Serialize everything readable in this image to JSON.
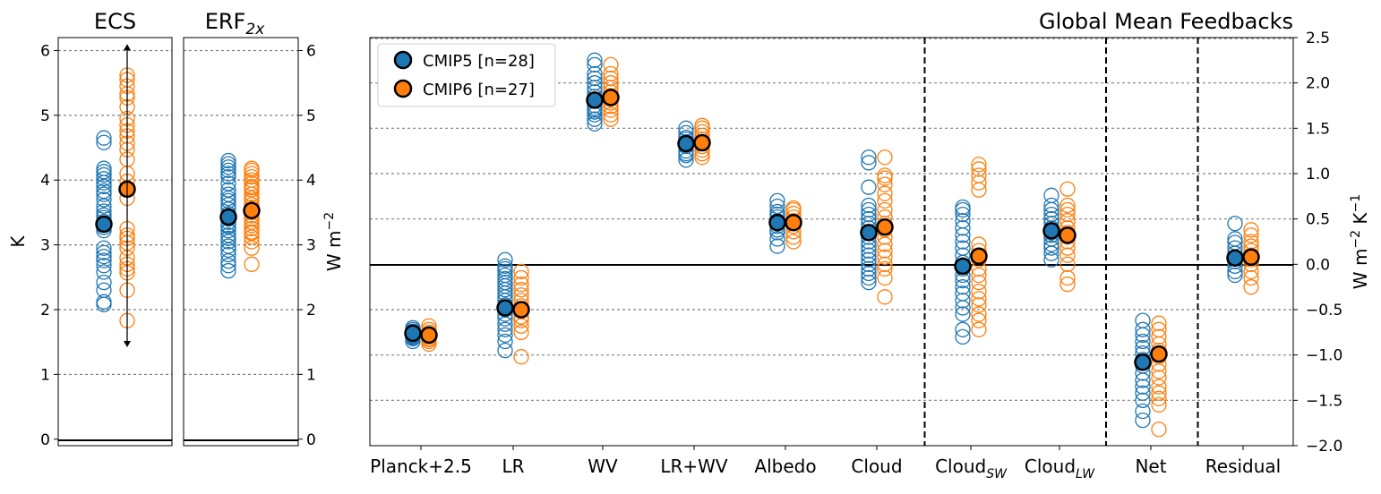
{
  "colors": {
    "cmip5": "#1f77b4",
    "cmip6": "#ff7f0e",
    "grid": "#808080"
  },
  "chart_data": [
    {
      "id": "ecs",
      "type": "scatter",
      "title": "ECS",
      "ylabel": "K",
      "ylim": [
        -0.1,
        6.2
      ],
      "yticks": [
        "0",
        "1",
        "2",
        "3",
        "4",
        "5",
        "6"
      ],
      "grid": "horizontal dashed",
      "series": [
        {
          "name": "CMIP5 [n=28]",
          "mean": 3.32,
          "values": [
            2.08,
            2.12,
            2.3,
            2.42,
            2.58,
            2.68,
            2.76,
            2.82,
            2.88,
            2.95,
            3.22,
            3.27,
            3.36,
            3.46,
            3.52,
            3.6,
            3.7,
            3.78,
            3.83,
            3.9,
            3.96,
            4.02,
            4.08,
            4.13,
            4.18,
            4.58,
            4.65,
            3.42
          ]
        },
        {
          "name": "CMIP6 [n=27]",
          "mean": 3.86,
          "values": [
            1.83,
            2.3,
            2.57,
            2.63,
            2.7,
            2.8,
            2.95,
            3.03,
            3.1,
            3.15,
            3.25,
            3.72,
            3.98,
            4.32,
            4.57,
            4.68,
            4.76,
            4.85,
            4.95,
            5.13,
            5.27,
            5.33,
            5.45,
            5.55,
            5.62,
            4.47,
            4.1
          ]
        }
      ],
      "arrows": {
        "up": 6.1,
        "down": 1.42
      }
    },
    {
      "id": "erf",
      "type": "scatter",
      "title": "ERF",
      "title_sub": "2x",
      "ylabel": "W m",
      "ylabel_sup": "−2",
      "ylim": [
        -0.1,
        6.2
      ],
      "yticks": [
        "0",
        "1",
        "2",
        "3",
        "4",
        "5",
        "6"
      ],
      "grid": "horizontal dashed",
      "series": [
        {
          "name": "CMIP5 [n=28]",
          "mean": 3.43,
          "values": [
            2.6,
            2.68,
            2.75,
            2.85,
            2.92,
            2.98,
            3.05,
            3.1,
            3.15,
            3.22,
            3.28,
            3.35,
            3.4,
            3.48,
            3.55,
            3.62,
            3.68,
            3.72,
            3.78,
            3.85,
            3.95,
            4.05,
            4.1,
            4.15,
            4.2,
            4.25,
            4.3,
            3.3
          ]
        },
        {
          "name": "CMIP6 [n=27]",
          "mean": 3.53,
          "values": [
            2.7,
            2.95,
            3.05,
            3.12,
            3.18,
            3.25,
            3.3,
            3.35,
            3.4,
            3.45,
            3.5,
            3.58,
            3.62,
            3.68,
            3.72,
            3.78,
            3.85,
            3.9,
            3.95,
            4.0,
            4.05,
            4.1,
            4.15,
            4.18,
            3.2,
            3.52,
            3.88
          ]
        }
      ]
    },
    {
      "id": "feedbacks",
      "type": "scatter",
      "title": "Global Mean Feedbacks",
      "ylabel": "W m",
      "ylabel_sup1": "−2",
      "ylabel_mid": " K",
      "ylabel_sup2": "−1",
      "ylim": [
        -2.0,
        2.5
      ],
      "yticks": [
        "−2.0",
        "−1.5",
        "−1.0",
        "−0.5",
        "0.0",
        "0.5",
        "1.0",
        "1.5",
        "2.0",
        "2.5"
      ],
      "grid": "horizontal dashed",
      "legend": "top-left",
      "categories": [
        {
          "label": "Planck+2.5",
          "sub": ""
        },
        {
          "label": "LR",
          "sub": ""
        },
        {
          "label": "WV",
          "sub": ""
        },
        {
          "label": "LR+WV",
          "sub": ""
        },
        {
          "label": "Albedo",
          "sub": ""
        },
        {
          "label": "Cloud",
          "sub": ""
        },
        {
          "label": "Cloud",
          "sub": "SW"
        },
        {
          "label": "Cloud",
          "sub": "LW"
        },
        {
          "label": "Net",
          "sub": ""
        },
        {
          "label": "Residual",
          "sub": ""
        }
      ],
      "separators_after": [
        5,
        7,
        8
      ],
      "series": [
        {
          "name": "CMIP5 [n=28]",
          "means": [
            -0.76,
            -0.48,
            1.81,
            1.33,
            0.46,
            0.35,
            -0.02,
            0.37,
            -1.08,
            0.07
          ],
          "values": [
            [
              -0.85,
              -0.82,
              -0.8,
              -0.78,
              -0.76,
              -0.74,
              -0.72,
              -0.7,
              -0.79,
              -0.81
            ],
            [
              -0.95,
              -0.85,
              -0.78,
              -0.72,
              -0.66,
              -0.6,
              -0.55,
              -0.5,
              -0.45,
              -0.4,
              -0.36,
              -0.32,
              -0.28,
              -0.24,
              -0.2,
              -0.16,
              -0.12,
              -0.08,
              -0.05,
              -0.02,
              0.05
            ],
            [
              1.55,
              1.6,
              1.65,
              1.7,
              1.75,
              1.8,
              1.85,
              1.9,
              1.95,
              2.0,
              2.05,
              2.1,
              2.2,
              2.25,
              1.72,
              1.68
            ],
            [
              1.15,
              1.2,
              1.25,
              1.3,
              1.35,
              1.4,
              1.45,
              1.5,
              1.22,
              1.38
            ],
            [
              0.2,
              0.28,
              0.35,
              0.42,
              0.48,
              0.52,
              0.58,
              0.64,
              0.7,
              0.38,
              0.55
            ],
            [
              -0.2,
              -0.15,
              -0.1,
              -0.05,
              0.0,
              0.05,
              0.1,
              0.15,
              0.2,
              0.25,
              0.3,
              0.35,
              0.4,
              0.45,
              0.5,
              0.55,
              0.6,
              0.65,
              0.85,
              1.12,
              1.18
            ],
            [
              -0.8,
              -0.72,
              -0.55,
              -0.48,
              -0.4,
              -0.32,
              -0.25,
              -0.18,
              -0.12,
              -0.05,
              0.02,
              0.1,
              0.18,
              0.25,
              0.32,
              0.4,
              0.48,
              0.55,
              0.6,
              0.63
            ],
            [
              0.05,
              0.12,
              0.18,
              0.22,
              0.28,
              0.32,
              0.35,
              0.4,
              0.45,
              0.5,
              0.55,
              0.6,
              0.65,
              0.76
            ],
            [
              -1.72,
              -1.62,
              -1.5,
              -1.42,
              -1.35,
              -1.28,
              -1.2,
              -1.12,
              -1.05,
              -0.98,
              -0.92,
              -0.85,
              -0.78,
              -0.72,
              -0.62
            ],
            [
              -0.12,
              -0.08,
              -0.02,
              0.03,
              0.08,
              0.12,
              0.18,
              0.24,
              0.28,
              0.45
            ]
          ]
        },
        {
          "name": "CMIP6 [n=27]",
          "means": [
            -0.78,
            -0.5,
            1.84,
            1.34,
            0.46,
            0.41,
            0.09,
            0.32,
            -0.99,
            0.08
          ],
          "values": [
            [
              -0.88,
              -0.85,
              -0.82,
              -0.78,
              -0.75,
              -0.72,
              -0.68,
              -0.83,
              -0.8
            ],
            [
              -1.02,
              -0.75,
              -0.68,
              -0.62,
              -0.58,
              -0.52,
              -0.46,
              -0.4,
              -0.34,
              -0.28,
              -0.22,
              -0.15,
              -0.08
            ],
            [
              1.6,
              1.65,
              1.7,
              1.74,
              1.78,
              1.82,
              1.86,
              1.9,
              1.95,
              2.0,
              2.05,
              2.1,
              2.2
            ],
            [
              1.18,
              1.22,
              1.26,
              1.3,
              1.34,
              1.38,
              1.42,
              1.46,
              1.5,
              1.53
            ],
            [
              0.25,
              0.3,
              0.36,
              0.42,
              0.48,
              0.52,
              0.56,
              0.6,
              0.62
            ],
            [
              -0.36,
              -0.15,
              -0.05,
              0.0,
              0.08,
              0.15,
              0.22,
              0.3,
              0.38,
              0.45,
              0.52,
              0.6,
              0.7,
              0.78,
              0.88,
              0.95,
              0.98,
              1.18
            ],
            [
              -0.72,
              -0.62,
              -0.55,
              -0.45,
              -0.38,
              -0.3,
              -0.2,
              -0.12,
              -0.05,
              0.05,
              0.15,
              0.22,
              0.82,
              0.9,
              0.98,
              1.05,
              1.1
            ],
            [
              -0.22,
              -0.15,
              0.0,
              0.1,
              0.18,
              0.25,
              0.3,
              0.35,
              0.4,
              0.48,
              0.55,
              0.6,
              0.65,
              0.83
            ],
            [
              -1.82,
              -1.55,
              -1.48,
              -1.42,
              -1.35,
              -1.25,
              -1.18,
              -1.1,
              -1.02,
              -0.95,
              -0.88,
              -0.8,
              -0.72,
              -0.65
            ],
            [
              -0.25,
              -0.15,
              -0.08,
              0.0,
              0.05,
              0.1,
              0.15,
              0.2,
              0.25,
              0.32,
              0.38
            ]
          ]
        }
      ]
    }
  ]
}
